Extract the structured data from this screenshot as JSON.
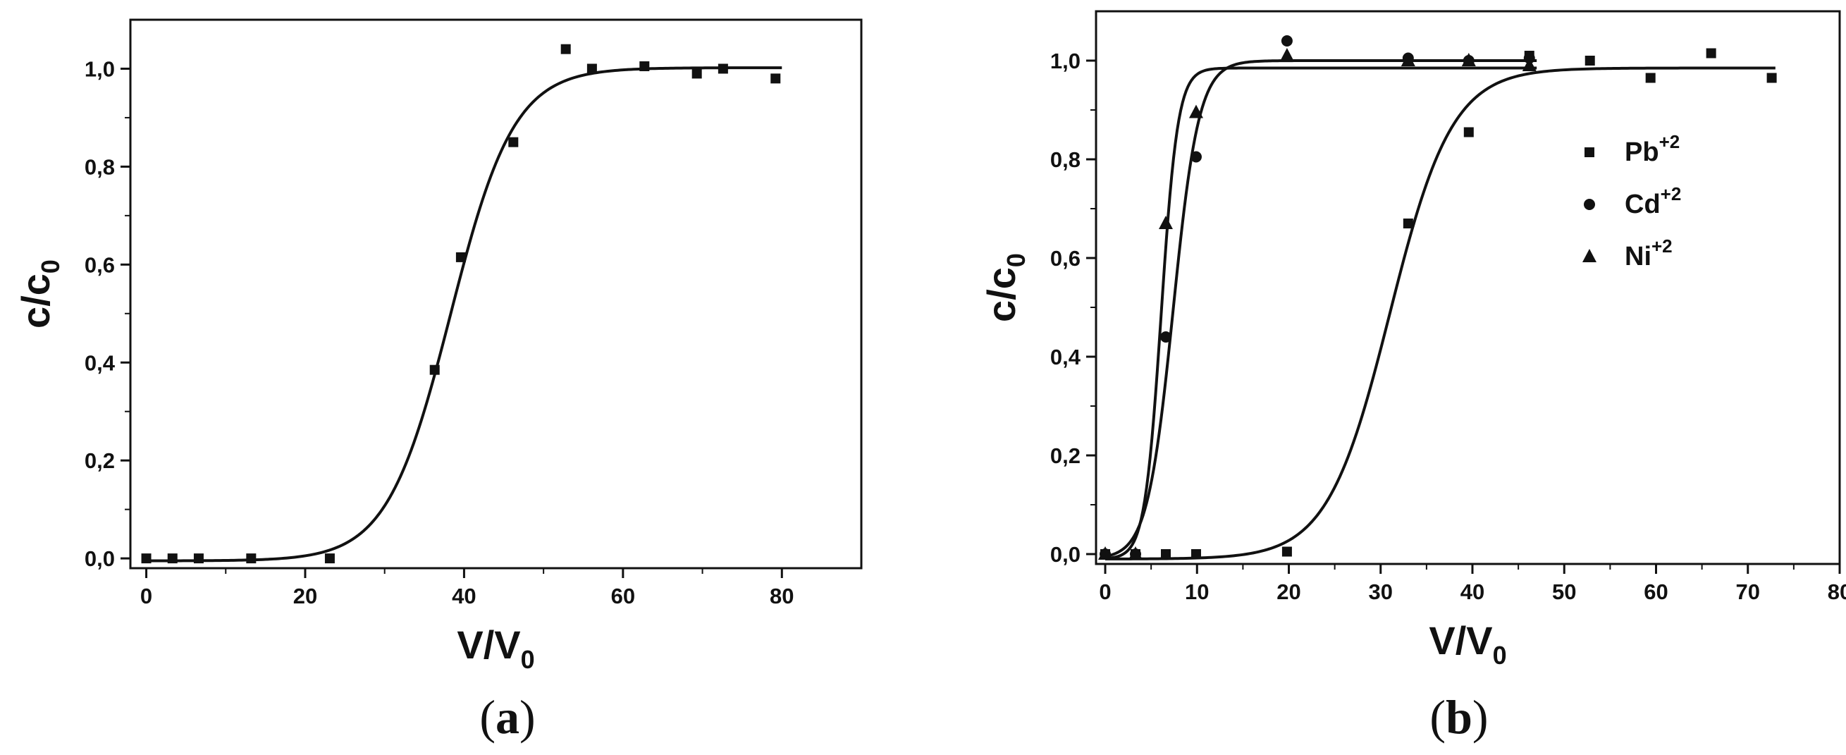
{
  "chart_data": [
    {
      "type": "scatter",
      "panel_label": "(a)",
      "xlabel": "V/V0",
      "ylabel": "c/c0",
      "xlim": [
        -2,
        90
      ],
      "ylim": [
        -0.02,
        1.1
      ],
      "x_ticks": [
        0,
        20,
        40,
        60,
        80
      ],
      "y_ticks": [
        0.0,
        0.2,
        0.4,
        0.6,
        0.8,
        1.0
      ],
      "x_tick_labels": [
        "0",
        "20",
        "40",
        "60",
        "80"
      ],
      "y_tick_labels": [
        "0,0",
        "0,2",
        "0,4",
        "0,6",
        "0,8",
        "1,0"
      ],
      "grid": false,
      "series": [
        {
          "marker": "square",
          "points": [
            [
              0,
              0.0
            ],
            [
              3.3,
              0.0
            ],
            [
              6.6,
              0.0
            ],
            [
              13.2,
              0.0
            ],
            [
              23.1,
              0.0
            ],
            [
              36.3,
              0.385
            ],
            [
              39.6,
              0.615
            ],
            [
              46.2,
              0.85
            ],
            [
              52.8,
              1.04
            ],
            [
              56.1,
              1.0
            ],
            [
              62.7,
              1.005
            ],
            [
              69.3,
              0.99
            ],
            [
              72.6,
              1.0
            ],
            [
              79.2,
              0.98
            ]
          ],
          "fit": {
            "bottom": -0.005,
            "top": 1.002,
            "x50": 38.3,
            "slope": 4.0,
            "x_range": [
              0,
              80
            ]
          }
        }
      ]
    },
    {
      "type": "scatter",
      "panel_label": "(b)",
      "xlabel": "V/V0",
      "ylabel": "c/c0",
      "xlim": [
        -1,
        80
      ],
      "ylim": [
        -0.02,
        1.1
      ],
      "x_ticks": [
        0,
        10,
        20,
        30,
        40,
        50,
        60,
        70,
        80
      ],
      "y_ticks": [
        0.0,
        0.2,
        0.4,
        0.6,
        0.8,
        1.0
      ],
      "x_tick_labels": [
        "0",
        "10",
        "20",
        "30",
        "40",
        "50",
        "60",
        "70",
        "80"
      ],
      "y_tick_labels": [
        "0,0",
        "0,2",
        "0,4",
        "0,6",
        "0,8",
        "1,0"
      ],
      "grid": false,
      "legend_position": "right",
      "series": [
        {
          "name": "Pb",
          "charge": "+2",
          "marker": "square",
          "points": [
            [
              0,
              0.0
            ],
            [
              3.3,
              0.0
            ],
            [
              6.6,
              0.0
            ],
            [
              9.9,
              0.0
            ],
            [
              19.8,
              0.005
            ],
            [
              33.0,
              0.67
            ],
            [
              39.6,
              0.855
            ],
            [
              46.2,
              1.01
            ],
            [
              52.8,
              1.0
            ],
            [
              59.4,
              0.965
            ],
            [
              66.0,
              1.015
            ],
            [
              72.6,
              0.965
            ]
          ],
          "fit": {
            "bottom": -0.01,
            "top": 0.985,
            "x50": 31.0,
            "slope": 3.4,
            "x_range": [
              0,
              73
            ]
          }
        },
        {
          "name": "Cd",
          "charge": "+2",
          "marker": "circle",
          "points": [
            [
              0,
              0.0
            ],
            [
              3.3,
              0.0
            ],
            [
              6.6,
              0.44
            ],
            [
              9.9,
              0.805
            ],
            [
              19.8,
              1.04
            ],
            [
              33.0,
              1.005
            ],
            [
              39.6,
              1.0
            ],
            [
              46.2,
              1.005
            ]
          ],
          "fit": {
            "bottom": -0.01,
            "top": 1.0,
            "x50": 7.4,
            "slope": 1.4,
            "x_range": [
              0,
              47
            ]
          }
        },
        {
          "name": "Ni",
          "charge": "+2",
          "marker": "triangle",
          "points": [
            [
              0,
              0.0
            ],
            [
              3.3,
              0.0
            ],
            [
              6.6,
              0.67
            ],
            [
              9.9,
              0.895
            ],
            [
              19.8,
              1.01
            ],
            [
              33.0,
              1.0
            ],
            [
              39.6,
              1.0
            ],
            [
              46.2,
              0.99
            ]
          ],
          "fit": {
            "bottom": -0.01,
            "top": 0.985,
            "x50": 6.1,
            "slope": 0.9,
            "x_range": [
              0,
              47
            ]
          }
        }
      ]
    }
  ]
}
